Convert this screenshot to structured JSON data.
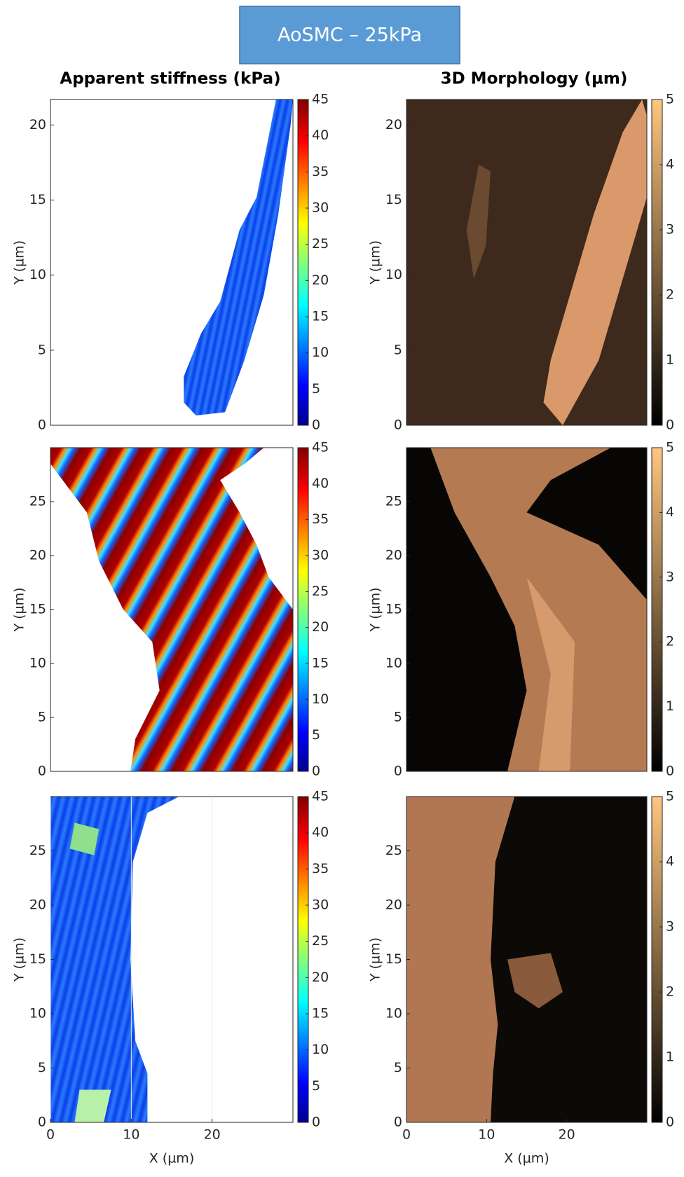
{
  "title": "AoSMC – 25kPa",
  "column_titles": [
    "Apparent stiffness (kPa)",
    "3D Morphology  (µm)"
  ],
  "chart_data": [
    {
      "type": "heatmap",
      "colormap": "jet",
      "grid": true,
      "ylabel": "Y (µm)",
      "xlim": [
        0,
        30
      ],
      "ylim": [
        0,
        21.7
      ],
      "yticks": [
        0,
        5,
        10,
        15,
        20
      ],
      "clim": [
        0,
        45
      ],
      "cticks": [
        0,
        5,
        10,
        15,
        20,
        25,
        30,
        35,
        40,
        45
      ]
    },
    {
      "type": "heatmap",
      "colormap": "copper",
      "grid": false,
      "ylabel": "Y (µm)",
      "xlim": [
        0,
        30
      ],
      "ylim": [
        0,
        21.7
      ],
      "yticks": [
        0,
        5,
        10,
        15,
        20
      ],
      "clim": [
        0,
        5
      ],
      "cticks": [
        0,
        1,
        2,
        3,
        4,
        5
      ]
    },
    {
      "type": "heatmap",
      "colormap": "jet",
      "grid": true,
      "ylabel": "Y (µm)",
      "xlim": [
        0,
        30
      ],
      "ylim": [
        0,
        30
      ],
      "yticks": [
        0,
        5,
        10,
        15,
        20,
        25
      ],
      "clim": [
        0,
        45
      ],
      "cticks": [
        0,
        5,
        10,
        15,
        20,
        25,
        30,
        35,
        40,
        45
      ]
    },
    {
      "type": "heatmap",
      "colormap": "copper",
      "grid": false,
      "ylabel": "Y (µm)",
      "xlim": [
        0,
        30
      ],
      "ylim": [
        0,
        30
      ],
      "yticks": [
        0,
        5,
        10,
        15,
        20,
        25
      ],
      "clim": [
        0,
        5
      ],
      "cticks": [
        0,
        1,
        2,
        3,
        4,
        5
      ]
    },
    {
      "type": "heatmap",
      "colormap": "jet",
      "grid": true,
      "ylabel": "Y (µm)",
      "xlabel": "X (µm)",
      "xlim": [
        0,
        30
      ],
      "ylim": [
        0,
        30
      ],
      "xticks": [
        0,
        10,
        20
      ],
      "yticks": [
        0,
        5,
        10,
        15,
        20,
        25
      ],
      "clim": [
        0,
        45
      ],
      "cticks": [
        0,
        5,
        10,
        15,
        20,
        25,
        30,
        35,
        40,
        45
      ]
    },
    {
      "type": "heatmap",
      "colormap": "copper",
      "grid": false,
      "ylabel": "Y (µm)",
      "xlabel": "X (µm)",
      "xlim": [
        0,
        30
      ],
      "ylim": [
        0,
        30
      ],
      "xticks": [
        0,
        10,
        20
      ],
      "yticks": [
        0,
        5,
        10,
        15,
        20,
        25
      ],
      "clim": [
        0,
        5
      ],
      "cticks": [
        0,
        1,
        2,
        3,
        4,
        5
      ]
    }
  ]
}
